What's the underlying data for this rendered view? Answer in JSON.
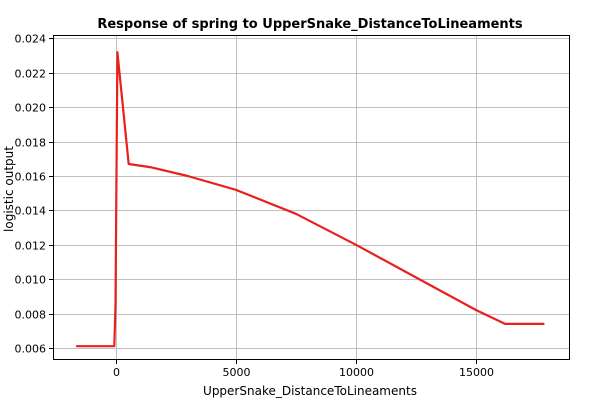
{
  "chart_data": {
    "type": "line",
    "title": "Response of spring to UpperSnake_DistanceToLineaments",
    "xlabel": "UpperSnake_DistanceToLineaments",
    "ylabel": "logistic output",
    "xlim": [
      -2600,
      18900
    ],
    "ylim": [
      0.0053,
      0.0242
    ],
    "xticks": [
      0,
      5000,
      10000,
      15000
    ],
    "xtick_labels": [
      "0",
      "5000",
      "10000",
      "15000"
    ],
    "yticks": [
      0.006,
      0.008,
      0.01,
      0.012,
      0.014,
      0.016,
      0.018,
      0.02,
      0.022,
      0.024
    ],
    "ytick_labels": [
      "0.006",
      "0.008",
      "0.010",
      "0.012",
      "0.014",
      "0.016",
      "0.018",
      "0.020",
      "0.022",
      "0.024"
    ],
    "grid": true,
    "series": [
      {
        "color": "#e8201e",
        "x": [
          -1600,
          -50,
          0,
          80,
          550,
          1500,
          3000,
          5000,
          7500,
          10000,
          12500,
          15000,
          16200,
          17800
        ],
        "y": [
          0.0061,
          0.0061,
          0.0085,
          0.0232,
          0.0167,
          0.0165,
          0.016,
          0.0152,
          0.0138,
          0.012,
          0.0101,
          0.0082,
          0.0074,
          0.0074
        ]
      }
    ]
  }
}
